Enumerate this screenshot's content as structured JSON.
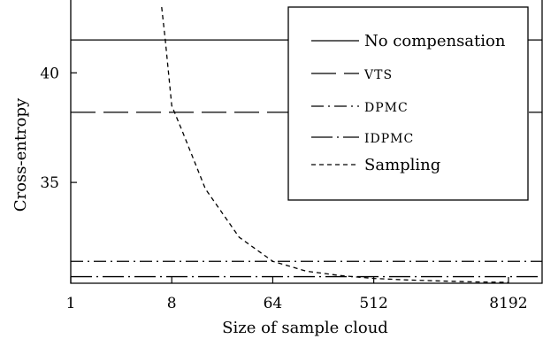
{
  "chart_data": {
    "type": "line",
    "xlabel": "Size of sample cloud",
    "ylabel": "Cross-entropy",
    "x_scale": "log2",
    "xlim": [
      1,
      16384
    ],
    "ylim": [
      30.4,
      43
    ],
    "x_ticks": [
      1,
      8,
      64,
      512,
      8192
    ],
    "x_tick_labels": [
      "1",
      "8",
      "64",
      "512",
      "8192"
    ],
    "y_ticks": [
      35,
      40
    ],
    "y_tick_labels": [
      "35",
      "40"
    ],
    "grid": false,
    "legend_position": "top-right",
    "series": [
      {
        "name": "No compensation",
        "style": "solid",
        "kind": "constant",
        "y": 41.5
      },
      {
        "name": "VTS",
        "style": "long-dash",
        "kind": "constant",
        "y": 38.2
      },
      {
        "name": "DPMC",
        "style": "dash-dot",
        "kind": "constant",
        "y": 31.4
      },
      {
        "name": "IDPMC",
        "style": "long-dash-dot",
        "kind": "constant",
        "y": 30.7
      },
      {
        "name": "Sampling",
        "style": "short-dash",
        "kind": "curve",
        "x": [
          6.5,
          7,
          8,
          10,
          16,
          32,
          64,
          128,
          256,
          512,
          1024,
          2048,
          4096,
          8192
        ],
        "y": [
          43,
          41.5,
          38.5,
          37.3,
          34.7,
          32.5,
          31.4,
          30.95,
          30.75,
          30.62,
          30.55,
          30.5,
          30.46,
          30.44
        ]
      }
    ]
  }
}
